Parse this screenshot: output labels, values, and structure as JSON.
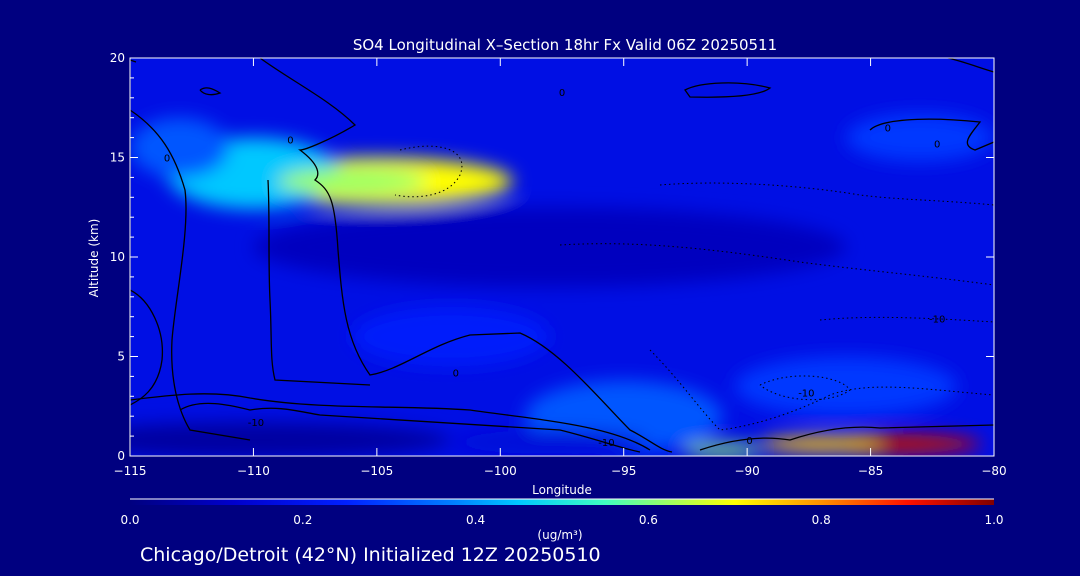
{
  "chart_data": {
    "type": "heatmap",
    "title": "SO4 Longitudinal X–Section 18hr  Fx Valid 06Z 20250511",
    "xlabel": "Longitude",
    "ylabel": "Altitude (km)",
    "xlim": [
      -115,
      -80
    ],
    "ylim": [
      0,
      20
    ],
    "xticks": [
      -115,
      -110,
      -105,
      -100,
      -95,
      -90,
      -85,
      -80
    ],
    "xtick_labels": [
      "−115",
      "−110",
      "−105",
      "−100",
      "−95",
      "−90",
      "−85",
      "−80"
    ],
    "yticks": [
      0,
      5,
      10,
      15,
      20
    ],
    "ytick_labels": [
      "0",
      "5",
      "10",
      "15",
      "20"
    ],
    "colorbar": {
      "range": [
        0.0,
        1.0
      ],
      "ticks": [
        0.0,
        0.2,
        0.4,
        0.6,
        0.8,
        1.0
      ],
      "tick_labels": [
        "0.0",
        "0.2",
        "0.4",
        "0.6",
        "0.8",
        "1.0"
      ],
      "unit_label": "(ug/m³)"
    },
    "background_value": 0.18,
    "features": [
      {
        "lon": -105,
        "alt": 13.8,
        "value": 0.7,
        "rx": 5.5,
        "ry": 1.2
      },
      {
        "lon": -110,
        "alt": 14.2,
        "value": 0.45,
        "rx": 3.5,
        "ry": 1.8
      },
      {
        "lon": -106,
        "alt": 13.8,
        "value": 0.62,
        "rx": 3.0,
        "ry": 0.7
      },
      {
        "lon": -84,
        "alt": 0.6,
        "value": 0.95,
        "rx": 3.5,
        "ry": 0.5
      },
      {
        "lon": -87,
        "alt": 0.6,
        "value": 0.75,
        "rx": 2.5,
        "ry": 0.4
      },
      {
        "lon": -91,
        "alt": 0.3,
        "value": 0.62,
        "rx": 1.6,
        "ry": 0.3
      },
      {
        "lon": -95,
        "alt": 2.0,
        "value": 0.32,
        "rx": 4.0,
        "ry": 1.8
      },
      {
        "lon": -86,
        "alt": 3.5,
        "value": 0.28,
        "rx": 4.5,
        "ry": 1.5
      },
      {
        "lon": -113,
        "alt": 15.5,
        "value": 0.32,
        "rx": 2.0,
        "ry": 1.5
      },
      {
        "lon": -83,
        "alt": 16,
        "value": 0.28,
        "rx": 3.0,
        "ry": 1.2
      },
      {
        "lon": -102,
        "alt": 6,
        "value": 0.24,
        "rx": 4.0,
        "ry": 1.5
      },
      {
        "lon": -98,
        "alt": 10.5,
        "value": 0.1,
        "rx": 12,
        "ry": 2.0
      },
      {
        "lon": -110,
        "alt": 0.8,
        "value": 0.05,
        "rx": 8,
        "ry": 0.9
      },
      {
        "lon": -98,
        "alt": 0.7,
        "value": 0.15,
        "rx": 4,
        "ry": 0.6
      }
    ],
    "contour_labels": [
      {
        "text": "0",
        "lon": -101.8,
        "alt": 4.0
      },
      {
        "text": "0",
        "lon": -108.5,
        "alt": 15.7
      },
      {
        "text": "0",
        "lon": -113.5,
        "alt": 14.8
      },
      {
        "text": "0",
        "lon": -97.5,
        "alt": 18.1
      },
      {
        "text": "0",
        "lon": -84.3,
        "alt": 16.3
      },
      {
        "text": "0",
        "lon": -82.3,
        "alt": 15.5
      },
      {
        "text": "0",
        "lon": -89.9,
        "alt": 0.6
      },
      {
        "text": "-10",
        "lon": -82.3,
        "alt": 6.7
      },
      {
        "text": "-10",
        "lon": -87.6,
        "alt": 3.0
      },
      {
        "text": "-10",
        "lon": -95.7,
        "alt": 0.5
      },
      {
        "text": "-10",
        "lon": -109.9,
        "alt": 1.5
      }
    ]
  },
  "footer": {
    "text": "Chicago/Detroit (42°N) Initialized 12Z 20250510"
  },
  "colors": {
    "background": "#000080",
    "axis": "#ffffff",
    "contour": "#000000"
  }
}
